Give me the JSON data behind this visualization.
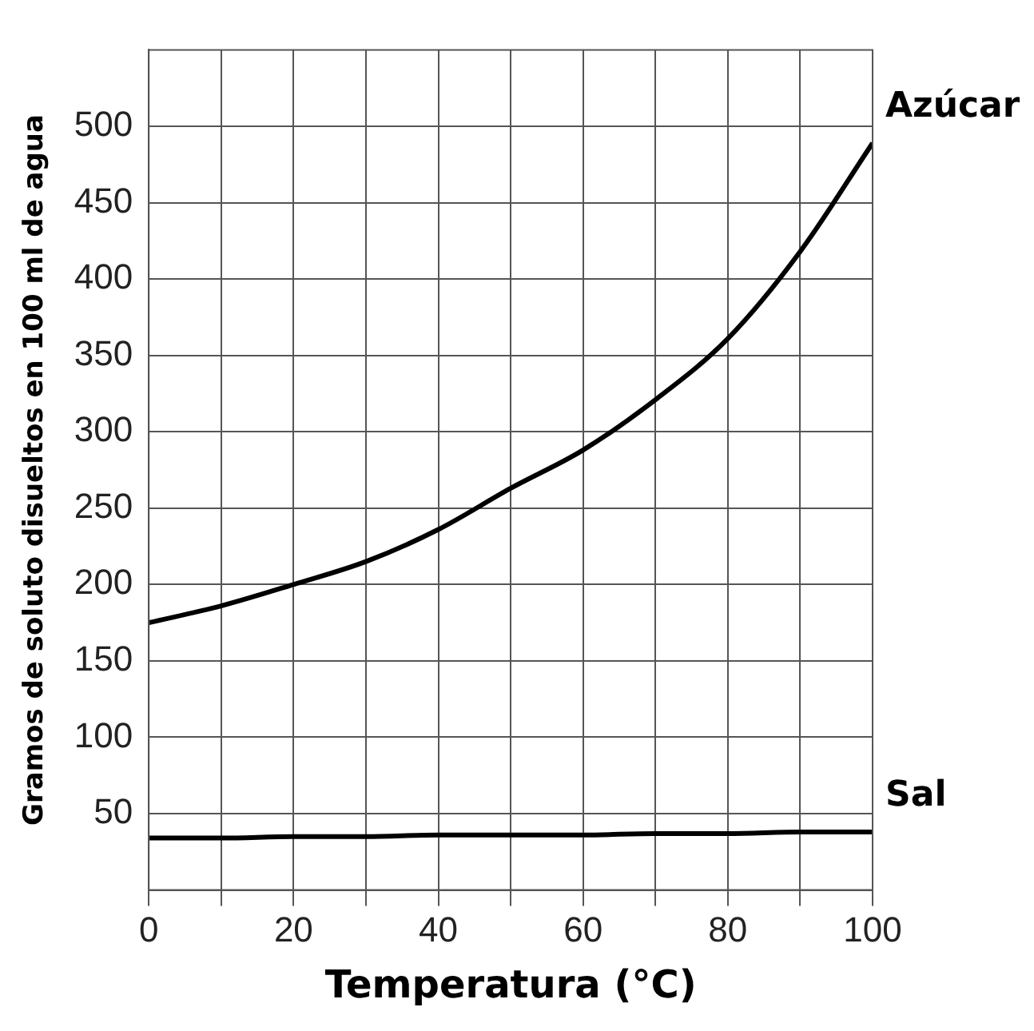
{
  "chart_data": {
    "type": "line",
    "xlabel": "Temperatura (°C)",
    "ylabel": "Gramos de soluto disueltos en 100 ml de agua",
    "x": [
      0,
      10,
      20,
      30,
      40,
      50,
      60,
      70,
      80,
      90,
      100
    ],
    "series": [
      {
        "name": "Azúcar",
        "color": "#000000",
        "values": [
          175,
          186,
          200,
          215,
          236,
          263,
          288,
          321,
          361,
          418,
          489
        ]
      },
      {
        "name": "Sal",
        "color": "#000000",
        "values": [
          34,
          34,
          35,
          35,
          36,
          36,
          36,
          37,
          37,
          38,
          38
        ]
      }
    ],
    "xlim": [
      0,
      100
    ],
    "xticks": [
      0,
      {
        "value": 10,
        "label": null
      },
      20,
      {
        "value": 30,
        "label": null
      },
      40,
      {
        "value": 50,
        "label": null
      },
      60,
      {
        "value": 70,
        "label": null
      },
      80,
      {
        "value": 90,
        "label": null
      },
      100
    ],
    "ylim": [
      0,
      550
    ],
    "yticks": [
      50,
      100,
      150,
      200,
      250,
      300,
      350,
      400,
      450,
      500
    ],
    "grid": true,
    "legend": false,
    "marker": "none",
    "line_style": "solid"
  }
}
